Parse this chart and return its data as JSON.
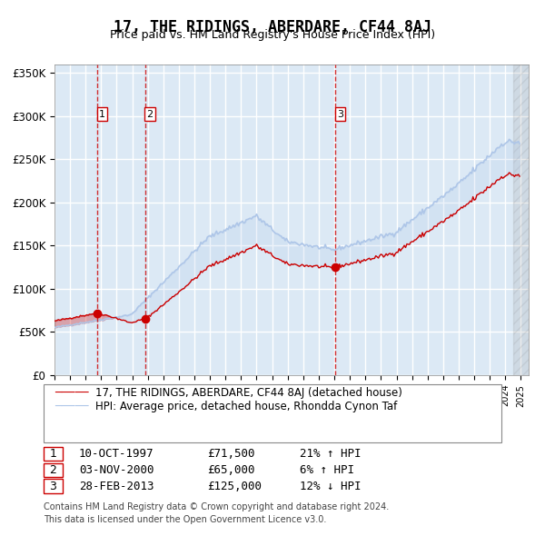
{
  "title": "17, THE RIDINGS, ABERDARE, CF44 8AJ",
  "subtitle": "Price paid vs. HM Land Registry's House Price Index (HPI)",
  "ylim": [
    0,
    360000
  ],
  "yticks": [
    0,
    50000,
    100000,
    150000,
    200000,
    250000,
    300000,
    350000
  ],
  "ytick_labels": [
    "£0",
    "£50K",
    "£100K",
    "£150K",
    "£200K",
    "£250K",
    "£300K",
    "£350K"
  ],
  "hpi_color": "#aec6e8",
  "price_color": "#cc0000",
  "sale_marker_color": "#cc0000",
  "background_color": "#dce9f5",
  "grid_color": "#ffffff",
  "sale_line_color": "#cc0000",
  "transactions": [
    {
      "date": "1997-10-10",
      "price": 71500,
      "label": "1"
    },
    {
      "date": "2000-11-03",
      "price": 65000,
      "label": "2"
    },
    {
      "date": "2013-02-28",
      "price": 125000,
      "label": "3"
    }
  ],
  "table_rows": [
    {
      "num": "1",
      "date": "10-OCT-1997",
      "price": "£71,500",
      "hpi": "21% ↑ HPI"
    },
    {
      "num": "2",
      "date": "03-NOV-2000",
      "price": "£65,000",
      "hpi": "6% ↑ HPI"
    },
    {
      "num": "3",
      "date": "28-FEB-2013",
      "price": "£125,000",
      "hpi": "12% ↓ HPI"
    }
  ],
  "legend_line1": "17, THE RIDINGS, ABERDARE, CF44 8AJ (detached house)",
  "legend_line2": "HPI: Average price, detached house, Rhondda Cynon Taf",
  "footer": "Contains HM Land Registry data © Crown copyright and database right 2024.\nThis data is licensed under the Open Government Licence v3.0."
}
